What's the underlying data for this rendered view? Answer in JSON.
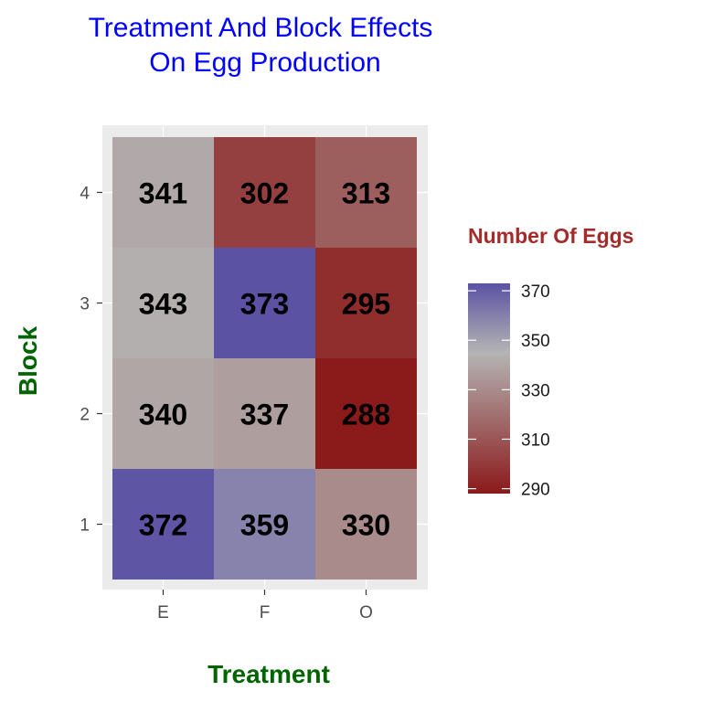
{
  "chart_data": {
    "type": "heatmap",
    "title_lines": [
      "Treatment And Block Effects",
      "On Egg Production"
    ],
    "xlabel": "Treatment",
    "ylabel": "Block",
    "x_categories": [
      "E",
      "F",
      "O"
    ],
    "y_categories": [
      "1",
      "2",
      "3",
      "4"
    ],
    "cells": [
      {
        "x": "E",
        "y": "1",
        "value": 372
      },
      {
        "x": "F",
        "y": "1",
        "value": 359
      },
      {
        "x": "O",
        "y": "1",
        "value": 330
      },
      {
        "x": "E",
        "y": "2",
        "value": 340
      },
      {
        "x": "F",
        "y": "2",
        "value": 337
      },
      {
        "x": "O",
        "y": "2",
        "value": 288
      },
      {
        "x": "E",
        "y": "3",
        "value": 343
      },
      {
        "x": "F",
        "y": "3",
        "value": 373
      },
      {
        "x": "O",
        "y": "3",
        "value": 295
      },
      {
        "x": "E",
        "y": "4",
        "value": 341
      },
      {
        "x": "F",
        "y": "4",
        "value": 302
      },
      {
        "x": "O",
        "y": "4",
        "value": 313
      }
    ],
    "legend": {
      "title": "Number Of Eggs",
      "ticks": [
        290,
        310,
        330,
        350,
        370
      ],
      "range": [
        288,
        373
      ],
      "low_color": "#8b1a1a",
      "mid_color": "#b4b4b4",
      "high_color": "#5b52a3",
      "midpoint": 345,
      "placement": "right"
    },
    "panel_background": "#ebebeb",
    "grid": true
  }
}
